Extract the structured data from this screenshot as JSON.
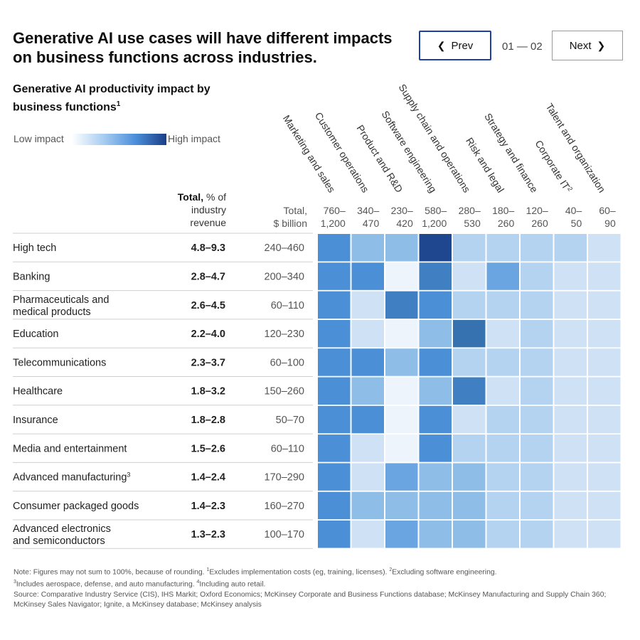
{
  "header": {
    "title": "Generative AI use cases will have different impacts on business functions across industries.",
    "prev_label": "Prev",
    "next_label": "Next",
    "pager": "01 — 02"
  },
  "chart_data": {
    "type": "heatmap",
    "title": "Generative AI productivity impact by business functions",
    "title_footnote": "1",
    "legend": {
      "low": "Low impact",
      "high": "High impact"
    },
    "row_header": {
      "total_pct_bold": "Total,",
      "total_pct_rest": " % of",
      "total_pct_line2": "industry",
      "total_pct_line3": "revenue",
      "total_usd_line1": "Total,",
      "total_usd_line2": "$ billion"
    },
    "columns": [
      {
        "name": "Marketing and sales",
        "range_line1": "760–",
        "range_line2": "1,200"
      },
      {
        "name": "Customer operations",
        "range_line1": "340–",
        "range_line2": "470"
      },
      {
        "name": "Product and R&D",
        "range_line1": "230–",
        "range_line2": "420"
      },
      {
        "name": "Software engineering",
        "range_line1": "580–",
        "range_line2": "1,200"
      },
      {
        "name": "Supply chain and operations",
        "range_line1": "280–",
        "range_line2": "530"
      },
      {
        "name": "Risk and legal",
        "range_line1": "180–",
        "range_line2": "260"
      },
      {
        "name": "Strategy and finance",
        "range_line1": "120–",
        "range_line2": "260"
      },
      {
        "name": "Corporate IT",
        "name_footnote": "2",
        "range_line1": "40–",
        "range_line2": "50"
      },
      {
        "name": "Talent and organization",
        "range_line1": "60–",
        "range_line2": "90"
      }
    ],
    "rows": [
      {
        "name": [
          "High tech"
        ],
        "total_pct": "4.8–9.3",
        "total_usd": "240–460",
        "levels": [
          5,
          3,
          3,
          8,
          2,
          2,
          2,
          2,
          1
        ]
      },
      {
        "name": [
          "Banking"
        ],
        "total_pct": "2.8–4.7",
        "total_usd": "200–340",
        "levels": [
          5,
          5,
          0,
          6,
          1,
          4,
          2,
          1,
          1
        ]
      },
      {
        "name": [
          "Pharmaceuticals and",
          "medical products"
        ],
        "total_pct": "2.6–4.5",
        "total_usd": "60–110",
        "levels": [
          5,
          1,
          6,
          5,
          2,
          2,
          2,
          1,
          1
        ]
      },
      {
        "name": [
          "Education"
        ],
        "total_pct": "2.2–4.0",
        "total_usd": "120–230",
        "levels": [
          5,
          1,
          0,
          3,
          7,
          1,
          2,
          1,
          1
        ]
      },
      {
        "name": [
          "Telecommunications"
        ],
        "total_pct": "2.3–3.7",
        "total_usd": "60–100",
        "levels": [
          5,
          5,
          3,
          5,
          2,
          2,
          2,
          1,
          1
        ]
      },
      {
        "name": [
          "Healthcare"
        ],
        "total_pct": "1.8–3.2",
        "total_usd": "150–260",
        "levels": [
          5,
          3,
          0,
          3,
          6,
          1,
          2,
          1,
          1
        ]
      },
      {
        "name": [
          "Insurance"
        ],
        "total_pct": "1.8–2.8",
        "total_usd": "50–70",
        "levels": [
          5,
          5,
          0,
          5,
          1,
          2,
          2,
          1,
          1
        ]
      },
      {
        "name": [
          "Media and entertainment"
        ],
        "total_pct": "1.5–2.6",
        "total_usd": "60–110",
        "levels": [
          5,
          1,
          0,
          5,
          2,
          2,
          2,
          1,
          1
        ]
      },
      {
        "name": [
          "Advanced manufacturing"
        ],
        "name_footnote": "3",
        "total_pct": "1.4–2.4",
        "total_usd": "170–290",
        "levels": [
          5,
          1,
          4,
          3,
          3,
          2,
          2,
          1,
          1
        ]
      },
      {
        "name": [
          "Consumer packaged goods"
        ],
        "total_pct": "1.4–2.3",
        "total_usd": "160–270",
        "levels": [
          5,
          3,
          3,
          3,
          3,
          2,
          2,
          1,
          1
        ]
      },
      {
        "name": [
          "Advanced electronics",
          "and semiconductors"
        ],
        "total_pct": "1.3–2.3",
        "total_usd": "100–170",
        "levels": [
          5,
          1,
          4,
          3,
          3,
          2,
          2,
          1,
          1
        ]
      }
    ],
    "level_scale": [
      "#eef4fb",
      "#cfe2f5",
      "#b3d3f1",
      "#8ebde8",
      "#6aa5e1",
      "#4b8fd7",
      "#3f7fc2",
      "#3671b0",
      "#1e4790"
    ]
  },
  "footer": {
    "note1_before": "Note: Figures may not sum to 100%, because of rounding. ",
    "fn1": "1",
    "note1_a": "Excludes implementation costs (eg, training, licenses). ",
    "fn2": "2",
    "note1_b": "Excluding software engineering.",
    "fn3": "3",
    "note2_a": "Includes aerospace, defense, and auto manufacturing. ",
    "fn4": "4",
    "note2_b": "Including auto retail.",
    "source": "Source: Comparative Industry Service (CIS), IHS Markit; Oxford Economics; McKinsey Corporate and Business Functions database; McKinsey Manufacturing and Supply Chain 360; McKinsey Sales Navigator; Ignite, a McKinsey database; McKinsey analysis"
  }
}
